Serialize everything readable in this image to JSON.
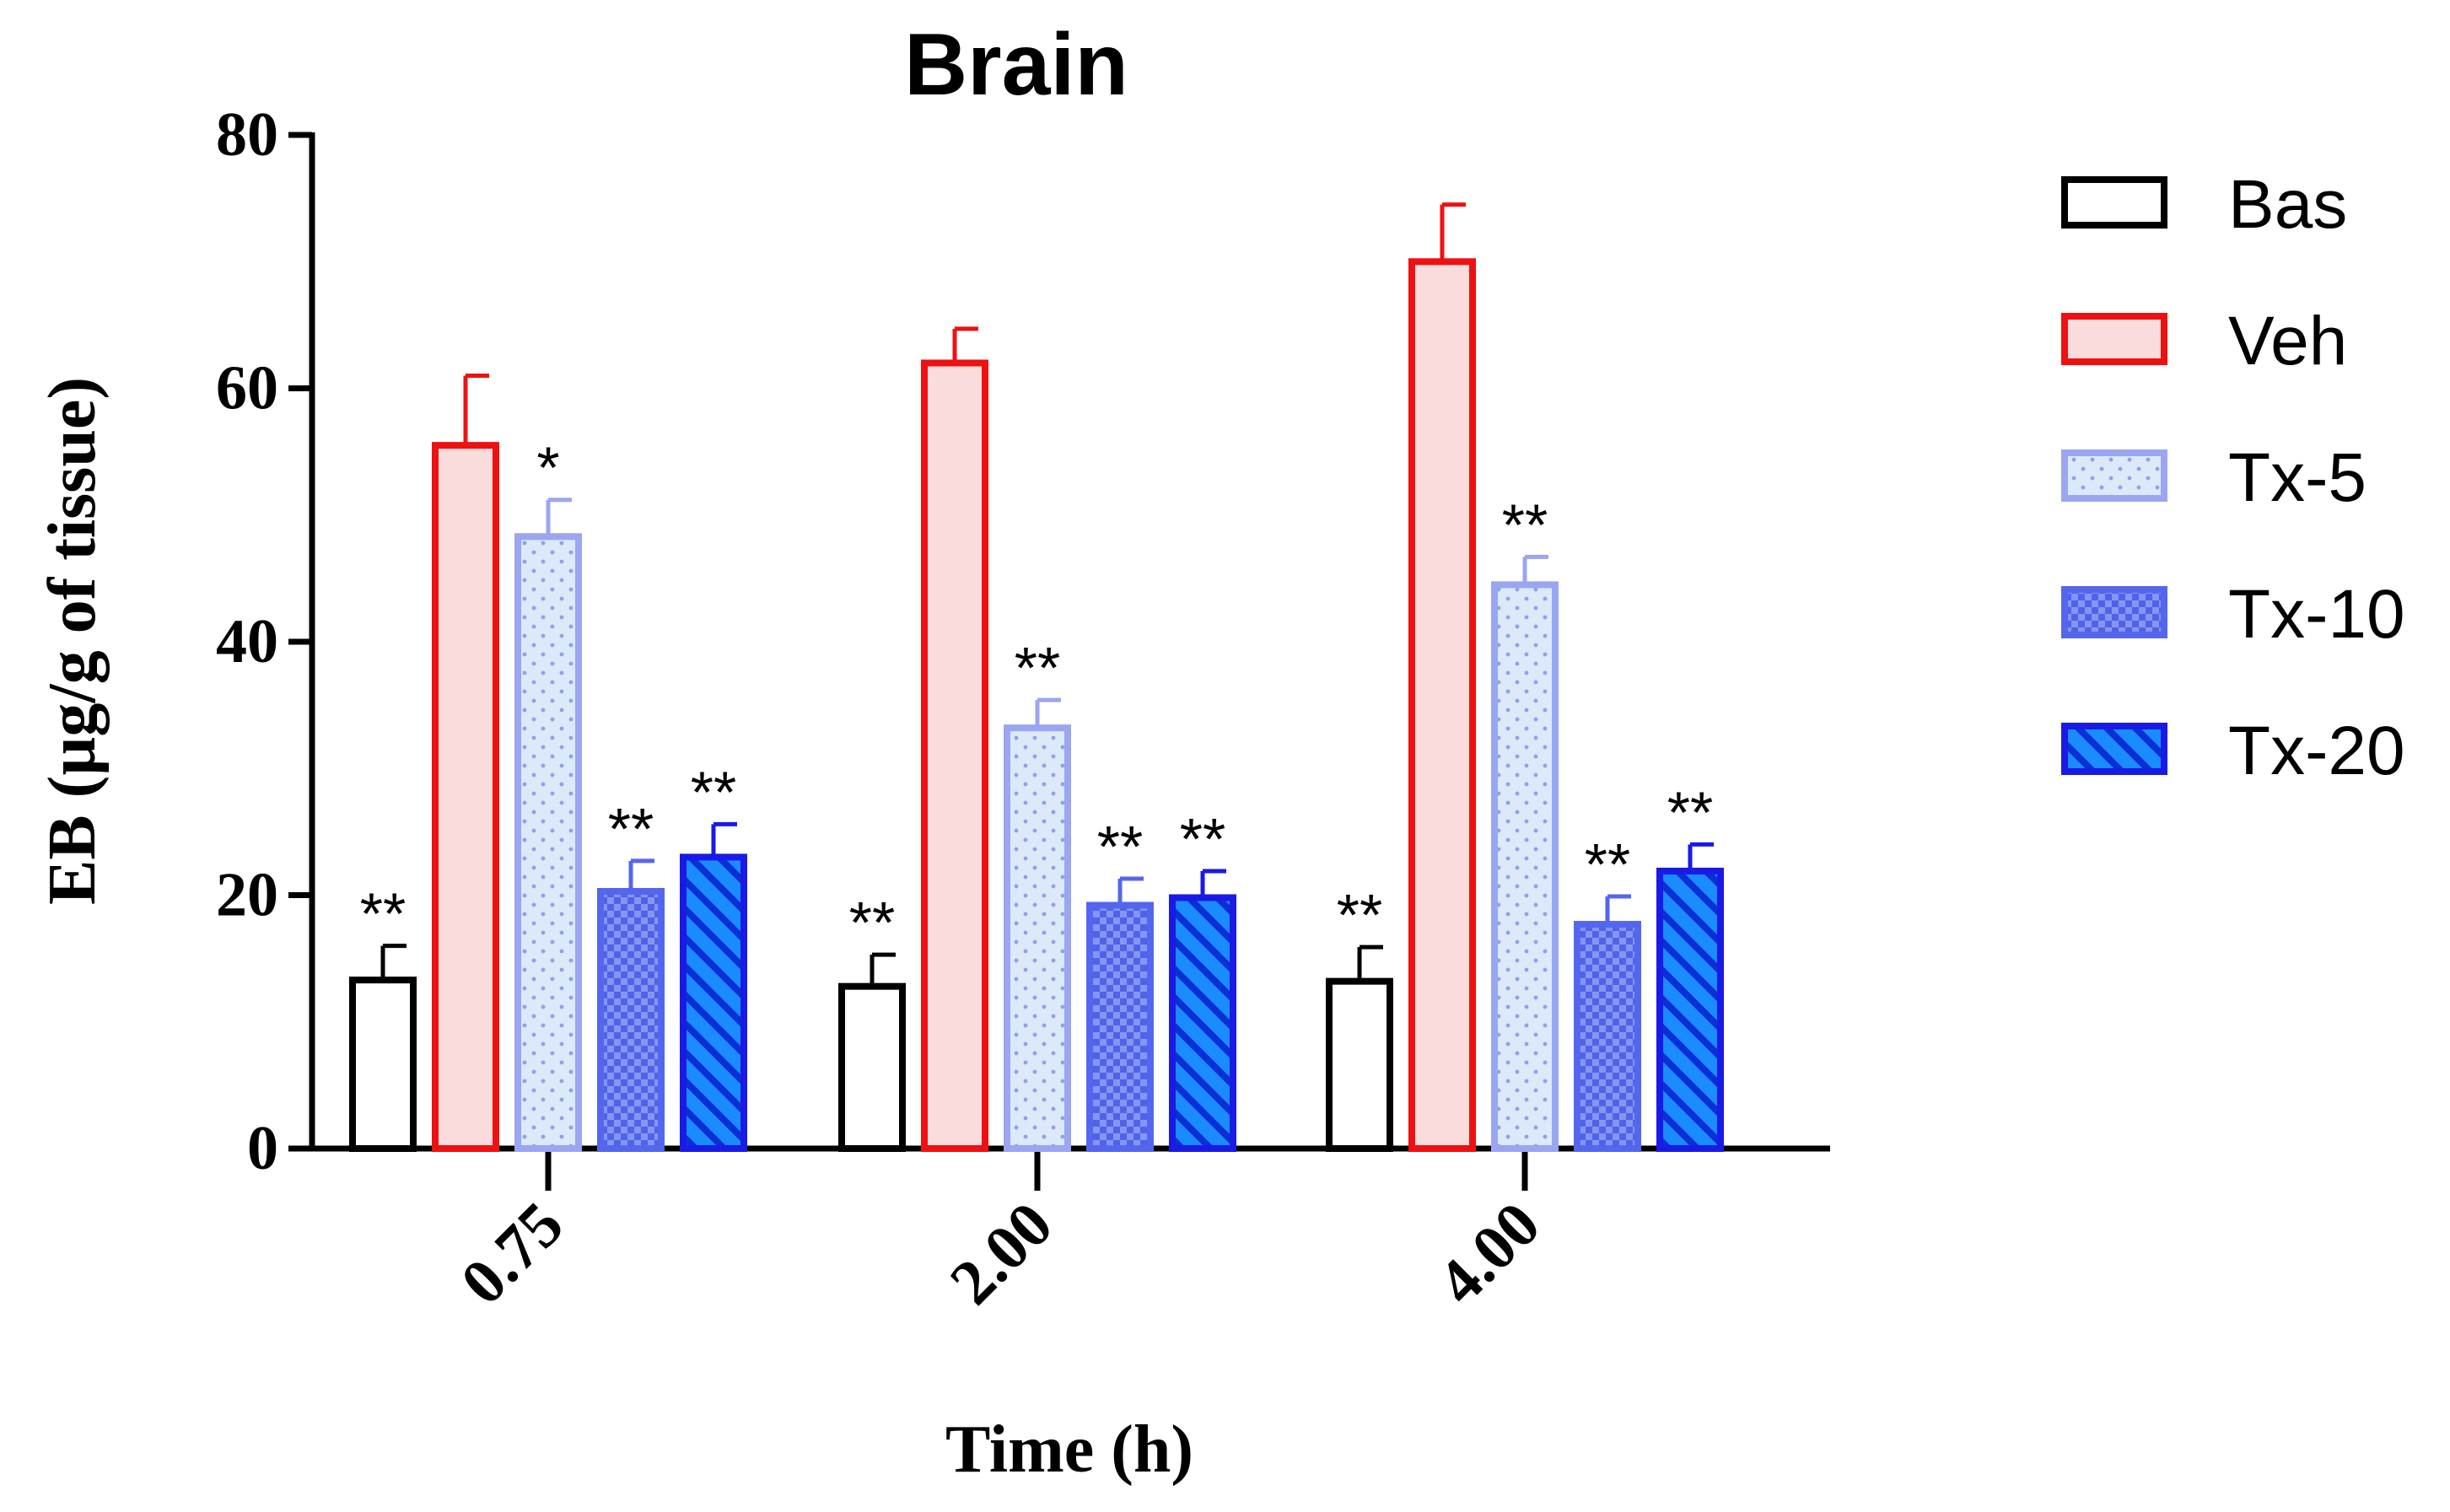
{
  "chart_data": {
    "type": "bar",
    "title": "Brain",
    "xlabel": "Time (h)",
    "ylabel": "EB (µg/g of tissue)",
    "ylim": [
      0,
      80
    ],
    "yticks": [
      "0",
      "20",
      "40",
      "60",
      "80"
    ],
    "categories": [
      "0.75",
      "2.00",
      "4.00"
    ],
    "legend_position": "right",
    "series": [
      {
        "name": "Bas",
        "values": [
          13.3,
          12.8,
          13.2
        ],
        "errors": [
          2.7,
          2.5,
          2.7
        ],
        "significance": [
          "**",
          "**",
          "**"
        ],
        "stroke": "#000000",
        "fill": "#ffffff",
        "pattern": "none"
      },
      {
        "name": "Veh",
        "values": [
          55.5,
          62.0,
          70.0
        ],
        "errors": [
          5.5,
          2.7,
          4.5
        ],
        "significance": [
          "",
          "",
          ""
        ],
        "stroke": "#ee1111",
        "fill": "#fbdcdc",
        "pattern": "none"
      },
      {
        "name": "Tx-5",
        "values": [
          48.3,
          33.2,
          44.5
        ],
        "errors": [
          2.9,
          2.2,
          2.2
        ],
        "significance": [
          "*",
          "**",
          "**"
        ],
        "stroke": "#9aa6f2",
        "fill": "#dbe9f8",
        "pattern": "dots"
      },
      {
        "name": "Tx-10",
        "values": [
          20.3,
          19.2,
          17.7
        ],
        "errors": [
          2.4,
          2.1,
          2.2
        ],
        "significance": [
          "**",
          "**",
          "**"
        ],
        "stroke": "#5566ee",
        "fill": "#8092f0",
        "pattern": "checker"
      },
      {
        "name": "Tx-20",
        "values": [
          23.0,
          19.8,
          21.9
        ],
        "errors": [
          2.6,
          2.1,
          2.1
        ],
        "significance": [
          "**",
          "**",
          "**"
        ],
        "stroke": "#1a1ae6",
        "fill": "#1a8cff",
        "pattern": "stripes"
      }
    ]
  }
}
